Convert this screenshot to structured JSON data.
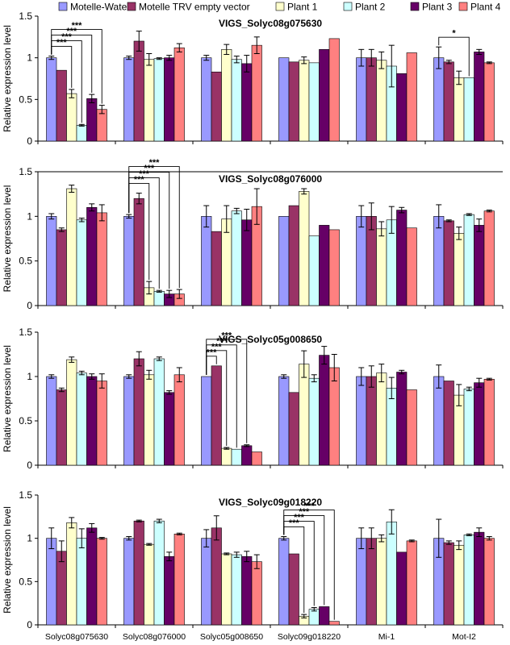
{
  "legend": {
    "placement": "top",
    "entries": [
      {
        "name": "Motelle-Water",
        "color": "#9999FF"
      },
      {
        "name": "Motelle TRV empty vector",
        "color": "#993366"
      },
      {
        "name": "Plant 1",
        "color": "#FFFFCC"
      },
      {
        "name": "Plant 2",
        "color": "#CCFFFF"
      },
      {
        "name": "Plant 3",
        "color": "#660066"
      },
      {
        "name": "Plant 4",
        "color": "#FF8080"
      }
    ]
  },
  "chart_data": [
    {
      "type": "bar",
      "title": "VIGS_Solyc08g075630",
      "ylabel": "Relative expression level",
      "ylim": [
        0,
        1.5
      ],
      "yticks": [
        "0",
        "0.5",
        "1",
        "1.5"
      ],
      "grid": false,
      "series": [
        {
          "name": "Motelle-Water",
          "values": [
            1.0,
            1.0,
            1.0,
            1.0,
            1.0,
            1.0
          ],
          "errors": [
            0.02,
            0.02,
            0.03,
            0,
            0.1,
            0.13
          ]
        },
        {
          "name": "Motelle TRV empty vector",
          "values": [
            0.85,
            1.2,
            0.83,
            0.95,
            1.0,
            0.95
          ],
          "errors": [
            0,
            0.12,
            0,
            0,
            0.1,
            0.02
          ]
        },
        {
          "name": "Plant 1",
          "values": [
            0.57,
            0.98,
            1.1,
            0.97,
            0.97,
            0.76
          ],
          "errors": [
            0.05,
            0.07,
            0.06,
            0.04,
            0.1,
            0.08
          ]
        },
        {
          "name": "Plant 2",
          "values": [
            0.19,
            0.99,
            0.98,
            0.94,
            0.9,
            0.76
          ],
          "errors": [
            0.01,
            0.01,
            0.04,
            0,
            0.25,
            0
          ]
        },
        {
          "name": "Plant 3",
          "values": [
            0.51,
            1.0,
            0.93,
            1.1,
            0.81,
            1.07
          ],
          "errors": [
            0.05,
            0.03,
            0.1,
            0,
            0,
            0.03
          ]
        },
        {
          "name": "Plant 4",
          "values": [
            0.38,
            1.12,
            1.15,
            1.23,
            1.06,
            0.94
          ],
          "errors": [
            0.05,
            0.05,
            0.1,
            0,
            0,
            0.01
          ]
        }
      ],
      "significance": [
        {
          "group": 0,
          "target": 2,
          "label": "***"
        },
        {
          "group": 0,
          "target": 3,
          "label": "***"
        },
        {
          "group": 0,
          "target": 4,
          "label": "***"
        },
        {
          "group": 0,
          "target": 5,
          "label": "***"
        },
        {
          "group": 5,
          "target": 3,
          "label": "*"
        }
      ]
    },
    {
      "type": "bar",
      "title": "VIGS_Solyc08g076000",
      "ylabel": "Relative expression level",
      "ylim": [
        0,
        1.5
      ],
      "yticks": [
        "0",
        "0.5",
        "1",
        "1.5"
      ],
      "grid": false,
      "series": [
        {
          "name": "Motelle-Water",
          "values": [
            1.0,
            1.0,
            1.0,
            1.0,
            1.0,
            1.0
          ],
          "errors": [
            0.03,
            0.02,
            0.12,
            0,
            0.12,
            0.13
          ]
        },
        {
          "name": "Motelle TRV empty vector",
          "values": [
            0.85,
            1.2,
            0.83,
            1.12,
            1.0,
            0.95
          ],
          "errors": [
            0.02,
            0.06,
            0,
            0,
            0.15,
            0.01
          ]
        },
        {
          "name": "Plant 1",
          "values": [
            1.31,
            0.2,
            0.97,
            1.28,
            0.86,
            0.81
          ],
          "errors": [
            0.04,
            0.07,
            0.15,
            0.03,
            0.08,
            0.07
          ]
        },
        {
          "name": "Plant 2",
          "values": [
            0.96,
            0.16,
            1.06,
            0.78,
            0.96,
            1.02
          ],
          "errors": [
            0.02,
            0.01,
            0.03,
            0,
            0.15,
            0.01
          ]
        },
        {
          "name": "Plant 3",
          "values": [
            1.1,
            0.13,
            0.96,
            0.9,
            1.07,
            0.9
          ],
          "errors": [
            0.04,
            0.04,
            0.12,
            0,
            0.03,
            0.07
          ]
        },
        {
          "name": "Plant 4",
          "values": [
            1.04,
            0.13,
            1.11,
            0.85,
            0.87,
            1.06
          ],
          "errors": [
            0.09,
            0.05,
            0.2,
            0,
            0,
            0.01
          ]
        }
      ],
      "significance": [
        {
          "group": 1,
          "target": 2,
          "label": "***"
        },
        {
          "group": 1,
          "target": 3,
          "label": "***"
        },
        {
          "group": 1,
          "target": 4,
          "label": "***"
        },
        {
          "group": 1,
          "target": 5,
          "label": "***"
        }
      ]
    },
    {
      "type": "bar",
      "title": "VIGS_Solyc05g008650",
      "ylabel": "Relative expression level",
      "ylim": [
        0,
        1.5
      ],
      "yticks": [
        "0",
        "0.5",
        "1",
        "1.5"
      ],
      "grid": false,
      "series": [
        {
          "name": "Motelle-Water",
          "values": [
            1.0,
            1.0,
            1.0,
            1.0,
            1.0,
            1.0
          ],
          "errors": [
            0.02,
            0.02,
            0,
            0.02,
            0.1,
            0.13
          ]
        },
        {
          "name": "Motelle TRV empty vector",
          "values": [
            0.85,
            1.2,
            1.12,
            0.82,
            1.0,
            0.95
          ],
          "errors": [
            0.02,
            0.08,
            0,
            0,
            0.12,
            0
          ]
        },
        {
          "name": "Plant 1",
          "values": [
            1.19,
            1.02,
            0.19,
            1.14,
            1.04,
            0.79
          ],
          "errors": [
            0.03,
            0.05,
            0.01,
            0.15,
            0.1,
            0.12
          ]
        },
        {
          "name": "Plant 2",
          "values": [
            1.04,
            1.2,
            0.18,
            0.98,
            0.87,
            0.86
          ],
          "errors": [
            0.02,
            0.02,
            0,
            0.04,
            0.12,
            0.02
          ]
        },
        {
          "name": "Plant 3",
          "values": [
            1.0,
            0.82,
            0.22,
            1.24,
            1.05,
            0.93
          ],
          "errors": [
            0.03,
            0.02,
            0.01,
            0.1,
            0.02,
            0.05
          ]
        },
        {
          "name": "Plant 4",
          "values": [
            0.95,
            1.02,
            0.15,
            1.1,
            0.85,
            0.97
          ],
          "errors": [
            0.08,
            0.08,
            0,
            0.15,
            0,
            0.01
          ]
        }
      ],
      "significance": [
        {
          "group": 2,
          "target": 1,
          "label": "***"
        },
        {
          "group": 2,
          "target": 2,
          "label": "***"
        },
        {
          "group": 2,
          "target": 3,
          "label": "***"
        },
        {
          "group": 2,
          "target": 4,
          "label": "***"
        }
      ]
    },
    {
      "type": "bar",
      "title": "VIGS_Solyc09g018220",
      "ylabel": "Relative expression level",
      "ylim": [
        0,
        1.5
      ],
      "yticks": [
        "0",
        "0.5",
        "1",
        "1.5"
      ],
      "xticks": [
        "Solyc08g075630",
        "Solyc08g076000",
        "Solyc05g008650",
        "Solyc09g018220",
        "Mi-1",
        "Mot-I2"
      ],
      "grid": false,
      "series": [
        {
          "name": "Motelle-Water",
          "values": [
            1.0,
            1.0,
            1.0,
            1.0,
            1.0,
            1.0
          ],
          "errors": [
            0.12,
            0.02,
            0.1,
            0.02,
            0.12,
            0.22
          ]
        },
        {
          "name": "Motelle TRV empty vector",
          "values": [
            0.85,
            1.2,
            1.12,
            0.82,
            1.0,
            0.95
          ],
          "errors": [
            0.12,
            0.01,
            0.14,
            0,
            0.12,
            0.02
          ]
        },
        {
          "name": "Plant 1",
          "values": [
            1.18,
            0.93,
            0.82,
            0.1,
            1.0,
            0.92
          ],
          "errors": [
            0.06,
            0.01,
            0.01,
            0.02,
            0.04,
            0.05
          ]
        },
        {
          "name": "Plant 2",
          "values": [
            1.0,
            1.2,
            0.81,
            0.18,
            1.19,
            1.04
          ],
          "errors": [
            0.11,
            0.02,
            0.03,
            0.02,
            0.14,
            0.01
          ]
        },
        {
          "name": "Plant 3",
          "values": [
            1.12,
            0.79,
            0.79,
            0.21,
            0.84,
            1.07
          ],
          "errors": [
            0.05,
            0.05,
            0.06,
            0,
            0,
            0.05
          ]
        },
        {
          "name": "Plant 4",
          "values": [
            1.0,
            1.05,
            0.73,
            0.04,
            0.97,
            1.0
          ],
          "errors": [
            0.01,
            0.01,
            0.08,
            0,
            0.01,
            0.02
          ]
        }
      ],
      "significance": [
        {
          "group": 3,
          "target": 2,
          "label": "***"
        },
        {
          "group": 3,
          "target": 3,
          "label": "***"
        },
        {
          "group": 3,
          "target": 4,
          "label": "***"
        },
        {
          "group": 3,
          "target": 5,
          "label": "***"
        }
      ]
    }
  ]
}
